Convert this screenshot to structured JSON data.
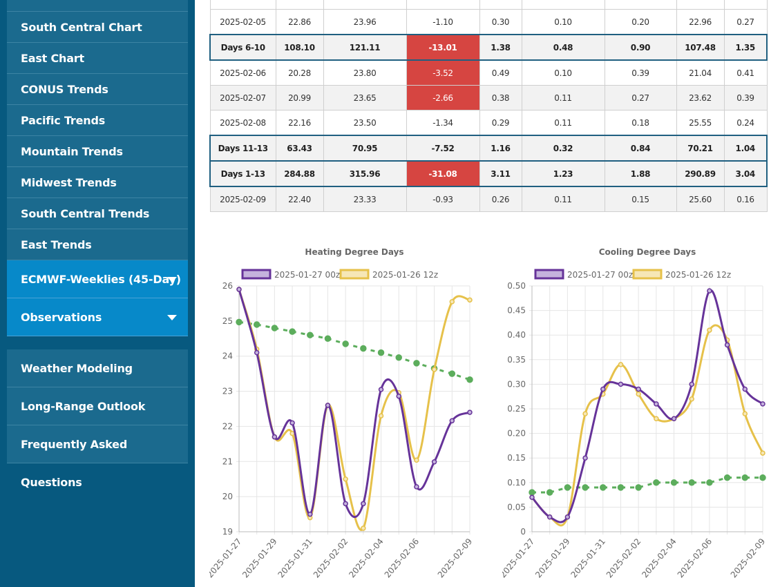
{
  "sidebar": {
    "items": [
      {
        "label": "South Central Chart"
      },
      {
        "label": "East Chart"
      },
      {
        "label": "CONUS Trends"
      },
      {
        "label": "Pacific Trends"
      },
      {
        "label": "Mountain Trends"
      },
      {
        "label": "Midwest Trends"
      },
      {
        "label": "South Central Trends"
      },
      {
        "label": "East Trends"
      },
      {
        "label": "ECMWF-Weeklies (45-Day)"
      },
      {
        "label": "Observations"
      }
    ],
    "secondary": [
      {
        "label": "Weather Modeling"
      },
      {
        "label": "Long-Range Outlook"
      },
      {
        "label": "Frequently Asked Questions"
      }
    ]
  },
  "table": {
    "rows": [
      {
        "type": "normal",
        "cells": [
          "2025-02-05",
          "22.86",
          "23.96",
          "-1.10",
          "0.30",
          "0.10",
          "0.20",
          "22.96",
          "0.27"
        ]
      },
      {
        "type": "summary",
        "neg": true,
        "cells": [
          "Days 6-10",
          "108.10",
          "121.11",
          "-13.01",
          "1.38",
          "0.48",
          "0.90",
          "107.48",
          "1.35"
        ]
      },
      {
        "type": "normal",
        "neg": true,
        "cells": [
          "2025-02-06",
          "20.28",
          "23.80",
          "-3.52",
          "0.49",
          "0.10",
          "0.39",
          "21.04",
          "0.41"
        ]
      },
      {
        "type": "alt",
        "neg": true,
        "cells": [
          "2025-02-07",
          "20.99",
          "23.65",
          "-2.66",
          "0.38",
          "0.11",
          "0.27",
          "23.62",
          "0.39"
        ]
      },
      {
        "type": "normal",
        "cells": [
          "2025-02-08",
          "22.16",
          "23.50",
          "-1.34",
          "0.29",
          "0.11",
          "0.18",
          "25.55",
          "0.24"
        ]
      },
      {
        "type": "summary",
        "cells": [
          "Days 11-13",
          "63.43",
          "70.95",
          "-7.52",
          "1.16",
          "0.32",
          "0.84",
          "70.21",
          "1.04"
        ]
      },
      {
        "type": "summary",
        "neg": true,
        "cells": [
          "Days 1-13",
          "284.88",
          "315.96",
          "-31.08",
          "3.11",
          "1.23",
          "1.88",
          "290.89",
          "3.04"
        ]
      },
      {
        "type": "alt",
        "cells": [
          "2025-02-09",
          "22.40",
          "23.33",
          "-0.93",
          "0.26",
          "0.11",
          "0.15",
          "25.60",
          "0.16"
        ]
      }
    ]
  },
  "colors": {
    "sidebar_bg": "#07597f",
    "nav_item": "#1b6a8e",
    "nav_active": "#0789c9",
    "negative_cell": "#d64541",
    "series_00z": "#663399",
    "series_12z": "#e6c14a",
    "series_normal": "#5cad5c"
  },
  "chart_data": [
    {
      "type": "line",
      "title": "Heating Degree Days",
      "x": [
        "2025-01-27",
        "2025-01-28",
        "2025-01-29",
        "2025-01-30",
        "2025-01-31",
        "2025-02-01",
        "2025-02-02",
        "2025-02-03",
        "2025-02-04",
        "2025-02-05",
        "2025-02-06",
        "2025-02-07",
        "2025-02-08",
        "2025-02-09"
      ],
      "xticks": [
        "2025-01-27",
        "2025-01-29",
        "2025-01-31",
        "2025-02-02",
        "2025-02-04",
        "2025-02-06",
        "2025-02-09"
      ],
      "ylim": [
        19,
        26
      ],
      "yticks": [
        "19",
        "20",
        "21",
        "22",
        "23",
        "24",
        "25",
        "26"
      ],
      "grid": true,
      "legend_position": "top",
      "series": [
        {
          "name": "2025-01-27 00z",
          "values": [
            25.9,
            24.1,
            21.7,
            22.1,
            19.5,
            22.6,
            19.8,
            19.8,
            23.05,
            22.86,
            20.28,
            20.99,
            22.16,
            22.4
          ]
        },
        {
          "name": "2025-01-26 12z",
          "values": [
            25.9,
            24.2,
            21.7,
            21.8,
            19.4,
            22.6,
            20.5,
            19.1,
            22.3,
            22.96,
            21.04,
            23.62,
            25.55,
            25.6
          ]
        },
        {
          "name": "",
          "values": [
            24.97,
            24.9,
            24.8,
            24.7,
            24.6,
            24.5,
            24.35,
            24.22,
            24.1,
            23.96,
            23.8,
            23.65,
            23.5,
            23.33
          ]
        }
      ]
    },
    {
      "type": "line",
      "title": "Cooling Degree Days",
      "x": [
        "2025-01-27",
        "2025-01-28",
        "2025-01-29",
        "2025-01-30",
        "2025-01-31",
        "2025-02-01",
        "2025-02-02",
        "2025-02-03",
        "2025-02-04",
        "2025-02-05",
        "2025-02-06",
        "2025-02-07",
        "2025-02-08",
        "2025-02-09"
      ],
      "xticks": [
        "2025-01-27",
        "2025-01-29",
        "2025-01-31",
        "2025-02-02",
        "2025-02-04",
        "2025-02-06",
        "2025-02-09"
      ],
      "ylim": [
        0,
        0.5
      ],
      "yticks": [
        "0",
        "0.05",
        "0.10",
        "0.15",
        "0.20",
        "0.25",
        "0.30",
        "0.35",
        "0.40",
        "0.45",
        "0.50"
      ],
      "grid": true,
      "legend_position": "top",
      "series": [
        {
          "name": "2025-01-27 00z",
          "values": [
            0.07,
            0.03,
            0.03,
            0.15,
            0.29,
            0.3,
            0.29,
            0.26,
            0.23,
            0.3,
            0.49,
            0.38,
            0.29,
            0.26
          ]
        },
        {
          "name": "2025-01-26 12z",
          "values": [
            0.07,
            0.03,
            0.03,
            0.24,
            0.28,
            0.34,
            0.28,
            0.23,
            0.23,
            0.27,
            0.41,
            0.39,
            0.24,
            0.16
          ]
        },
        {
          "name": "",
          "values": [
            0.08,
            0.08,
            0.09,
            0.09,
            0.09,
            0.09,
            0.09,
            0.1,
            0.1,
            0.1,
            0.1,
            0.11,
            0.11,
            0.11
          ]
        }
      ]
    }
  ]
}
